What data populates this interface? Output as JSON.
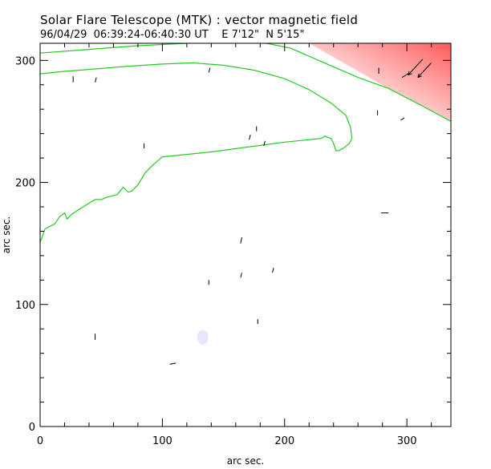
{
  "header": {
    "title": "Solar Flare Telescope (MTK) : vector magnetic field",
    "subtitle": "96/04/29  06:39:24-06:40:30 UT    E 7'12\"  N 5'15\""
  },
  "chart_data": {
    "type": "scatter",
    "title": "Solar Flare Telescope (MTK) : vector magnetic field",
    "xlabel": "arc sec.",
    "ylabel": "arc sec.",
    "xlim": [
      0,
      336
    ],
    "ylim": [
      0,
      314
    ],
    "x_ticks": [
      0,
      100,
      200,
      300
    ],
    "y_ticks": [
      0,
      100,
      200,
      300
    ],
    "grid": false,
    "colors": {
      "axes": "#000000",
      "contour": "#22cc22",
      "intensity_positive": "#ff6a6a",
      "intensity_negative": "#b8b8ff",
      "vectors": "#000000"
    },
    "series": [
      {
        "type": "line",
        "x": [
          0,
          20,
          45,
          70,
          100,
          125,
          150,
          175,
          200,
          220,
          238,
          250,
          254,
          255,
          253,
          248,
          244,
          242,
          240,
          238,
          235,
          233,
          230,
          200,
          170,
          140,
          110,
          100,
          92,
          86,
          80,
          75,
          72,
          68,
          63,
          55,
          50,
          45,
          40,
          32,
          26,
          22,
          20,
          16,
          12,
          8,
          4,
          2,
          0
        ],
        "y": [
          289,
          291,
          293,
          295,
          297,
          298,
          296,
          292,
          285,
          276,
          265,
          255,
          245,
          236,
          232,
          228,
          226,
          226,
          232,
          236,
          237,
          238,
          236,
          233,
          229,
          225,
          222,
          221,
          214,
          208,
          198,
          193,
          192,
          196,
          190,
          188,
          186,
          186,
          183,
          178,
          174,
          170,
          175,
          172,
          166,
          164,
          162,
          156,
          151
        ]
      },
      {
        "type": "line",
        "x": [
          0,
          40,
          80,
          120,
          160,
          185,
          195,
          205,
          230,
          260,
          285,
          310,
          336
        ],
        "y": [
          306,
          309,
          312,
          314,
          315,
          314,
          312,
          310,
          299,
          286,
          277,
          264,
          250
        ]
      },
      {
        "type": "vector",
        "x": [
          27,
          45,
          138,
          277,
          296,
          301,
          309,
          276,
          295,
          85,
          171,
          177,
          183,
          164,
          178,
          190,
          279,
          45,
          106,
          138,
          164
        ],
        "y": [
          282,
          282,
          290,
          289,
          286,
          288,
          286,
          255,
          251,
          228,
          235,
          242,
          230,
          150,
          84,
          126,
          175,
          71,
          51,
          116,
          122
        ],
        "dx": [
          0,
          1,
          1,
          0,
          5,
          12,
          11,
          0,
          3,
          0,
          1,
          0,
          1,
          1,
          0,
          1,
          6,
          0,
          5,
          0,
          1
        ],
        "dy": [
          5,
          4,
          4,
          5,
          3,
          13,
          12,
          4,
          2,
          4,
          4,
          4,
          4,
          5,
          4,
          4,
          0,
          5,
          1,
          4,
          4
        ]
      }
    ]
  }
}
